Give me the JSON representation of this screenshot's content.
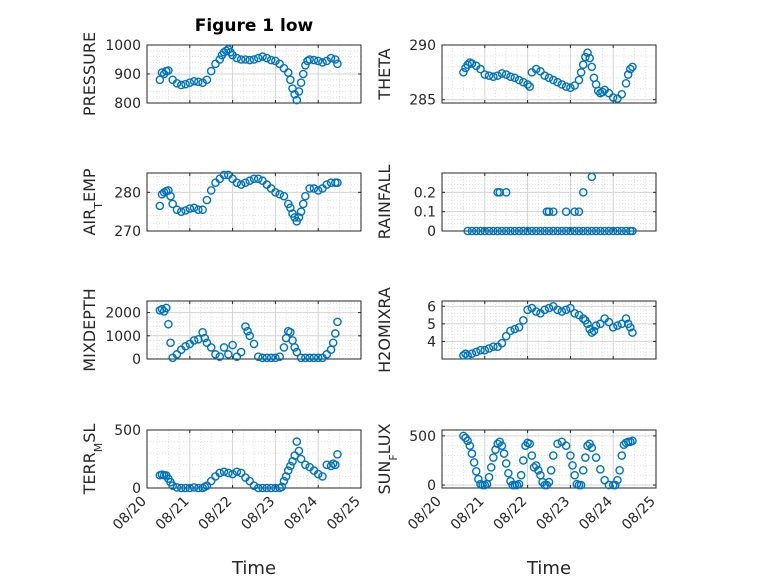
{
  "title": "Figure 1 low",
  "colors": {
    "marker": "#0072bd",
    "axis": "#262626",
    "grid": "#dcdcdc"
  },
  "x_ticks": [
    "08/20",
    "08/21",
    "08/22",
    "08/23",
    "08/24",
    "08/25"
  ],
  "x_label": "Time",
  "chart_data": [
    {
      "type": "scatter",
      "ylabel": "PRESSURE",
      "ylim": [
        800,
        1000
      ],
      "yticks": [
        800,
        900,
        1000
      ],
      "yticklabels": [
        "800",
        "900",
        "1000"
      ],
      "x": [
        20.3,
        20.35,
        20.4,
        20.45,
        20.5,
        20.6,
        20.7,
        20.8,
        20.9,
        21.0,
        21.1,
        21.2,
        21.3,
        21.4,
        21.5,
        21.6,
        21.7,
        21.75,
        21.8,
        21.85,
        21.9,
        21.95,
        22.0,
        22.1,
        22.2,
        22.3,
        22.4,
        22.5,
        22.6,
        22.7,
        22.8,
        22.9,
        23.0,
        23.1,
        23.2,
        23.3,
        23.35,
        23.4,
        23.45,
        23.5,
        23.55,
        23.6,
        23.65,
        23.7,
        23.75,
        23.8,
        23.9,
        24.0,
        24.1,
        24.2,
        24.3,
        24.4,
        24.45
      ],
      "y": [
        880,
        905,
        900,
        910,
        912,
        880,
        868,
        862,
        865,
        870,
        875,
        873,
        870,
        880,
        910,
        935,
        950,
        965,
        975,
        980,
        985,
        975,
        965,
        955,
        950,
        950,
        948,
        950,
        955,
        960,
        955,
        948,
        945,
        935,
        920,
        905,
        880,
        850,
        830,
        810,
        840,
        870,
        900,
        930,
        945,
        950,
        948,
        945,
        940,
        945,
        955,
        950,
        935
      ]
    },
    {
      "type": "scatter",
      "ylabel": "THETA",
      "ylim": [
        284.7,
        290
      ],
      "yticks": [
        285,
        290
      ],
      "yticklabels": [
        "285",
        "290"
      ],
      "x": [
        20.5,
        20.55,
        20.6,
        20.65,
        20.7,
        20.8,
        20.9,
        21.0,
        21.1,
        21.2,
        21.3,
        21.4,
        21.5,
        21.6,
        21.7,
        21.8,
        21.9,
        22.0,
        22.05,
        22.1,
        22.2,
        22.3,
        22.4,
        22.5,
        22.6,
        22.7,
        22.8,
        22.9,
        23.0,
        23.1,
        23.2,
        23.25,
        23.3,
        23.35,
        23.4,
        23.45,
        23.5,
        23.55,
        23.6,
        23.65,
        23.7,
        23.75,
        23.8,
        23.9,
        24.0,
        24.1,
        24.2,
        24.3,
        24.35,
        24.4,
        24.45
      ],
      "y": [
        287.5,
        287.9,
        288.2,
        288.4,
        288.3,
        288.1,
        287.8,
        287.3,
        287.2,
        287.1,
        287.2,
        287.4,
        287.3,
        287.1,
        287.0,
        286.8,
        286.6,
        286.4,
        286.2,
        287.5,
        287.8,
        287.6,
        287.2,
        287.0,
        286.8,
        286.6,
        286.4,
        286.2,
        286.1,
        286.3,
        286.8,
        287.5,
        288.2,
        288.9,
        289.3,
        288.8,
        288.0,
        287.0,
        286.4,
        285.8,
        285.6,
        285.7,
        285.9,
        285.6,
        285.2,
        285.1,
        285.5,
        286.5,
        287.3,
        287.8,
        288.0
      ]
    },
    {
      "type": "scatter",
      "ylabel": "AIR_TEMP",
      "ylim": [
        270,
        285
      ],
      "yticks": [
        270,
        280
      ],
      "yticklabels": [
        "270",
        "280"
      ],
      "x": [
        20.3,
        20.35,
        20.4,
        20.45,
        20.5,
        20.55,
        20.6,
        20.7,
        20.8,
        20.9,
        21.0,
        21.1,
        21.2,
        21.3,
        21.4,
        21.5,
        21.6,
        21.7,
        21.8,
        21.9,
        22.0,
        22.1,
        22.2,
        22.3,
        22.4,
        22.5,
        22.6,
        22.7,
        22.8,
        22.9,
        23.0,
        23.1,
        23.2,
        23.3,
        23.35,
        23.4,
        23.45,
        23.5,
        23.55,
        23.6,
        23.65,
        23.7,
        23.8,
        23.9,
        24.0,
        24.1,
        24.2,
        24.3,
        24.4,
        24.45
      ],
      "y": [
        276.5,
        279.5,
        280.0,
        280.3,
        280.5,
        279.0,
        277.0,
        275.5,
        275.0,
        275.3,
        275.8,
        276.0,
        275.5,
        275.5,
        278.0,
        280.5,
        282.5,
        283.5,
        284.5,
        284.5,
        283.5,
        282.5,
        282.0,
        282.5,
        283.0,
        283.5,
        283.5,
        283.0,
        282.0,
        281.0,
        280.0,
        279.5,
        279.0,
        277.0,
        276.0,
        274.5,
        273.5,
        272.5,
        273.5,
        275.0,
        277.0,
        279.0,
        281.0,
        281.0,
        280.5,
        281.0,
        282.0,
        282.5,
        282.5,
        282.5
      ]
    },
    {
      "type": "scatter",
      "ylabel": "RAINFALL",
      "ylim": [
        0,
        0.3
      ],
      "yticks": [
        0,
        0.1,
        0.2
      ],
      "yticklabels": [
        "0",
        "0.1",
        "0.2"
      ],
      "x": [
        20.6,
        20.7,
        20.8,
        20.9,
        21.0,
        21.1,
        21.2,
        21.3,
        21.4,
        21.5,
        21.6,
        21.7,
        21.8,
        21.9,
        22.0,
        22.1,
        22.2,
        22.3,
        22.4,
        22.5,
        22.6,
        22.7,
        22.8,
        22.9,
        23.0,
        23.1,
        23.2,
        23.3,
        23.4,
        23.5,
        23.6,
        23.7,
        23.8,
        23.9,
        24.0,
        24.1,
        24.2,
        24.3,
        24.4,
        24.45,
        21.3,
        21.35,
        21.5,
        22.45,
        22.5,
        22.6,
        22.9,
        23.1,
        23.2,
        23.3,
        23.5
      ],
      "y": [
        0,
        0,
        0,
        0,
        0,
        0,
        0,
        0,
        0,
        0,
        0,
        0,
        0,
        0,
        0,
        0,
        0,
        0,
        0,
        0,
        0,
        0,
        0,
        0,
        0,
        0,
        0,
        0,
        0,
        0,
        0,
        0,
        0,
        0,
        0,
        0,
        0,
        0,
        0,
        0,
        0.2,
        0.2,
        0.2,
        0.1,
        0.1,
        0.1,
        0.1,
        0.1,
        0.1,
        0.2,
        0.28
      ]
    },
    {
      "type": "scatter",
      "ylabel": "MIXDEPTH",
      "ylim": [
        0,
        2500
      ],
      "yticks": [
        0,
        1000,
        2000
      ],
      "yticklabels": [
        "0",
        "1000",
        "2000"
      ],
      "x": [
        20.3,
        20.35,
        20.4,
        20.45,
        20.5,
        20.55,
        20.6,
        20.7,
        20.8,
        20.9,
        21.0,
        21.1,
        21.2,
        21.3,
        21.35,
        21.4,
        21.5,
        21.6,
        21.7,
        21.8,
        21.9,
        22.0,
        22.1,
        22.2,
        22.3,
        22.35,
        22.4,
        22.5,
        22.6,
        22.7,
        22.8,
        22.9,
        23.0,
        23.1,
        23.2,
        23.25,
        23.3,
        23.35,
        23.4,
        23.45,
        23.5,
        23.6,
        23.7,
        23.8,
        23.9,
        24.0,
        24.1,
        24.2,
        24.3,
        24.35,
        24.4,
        24.45
      ],
      "y": [
        2100,
        2150,
        2050,
        2200,
        1500,
        700,
        50,
        200,
        400,
        550,
        650,
        800,
        850,
        1150,
        900,
        700,
        500,
        200,
        100,
        500,
        200,
        600,
        100,
        300,
        1400,
        1200,
        1000,
        650,
        100,
        50,
        50,
        50,
        50,
        100,
        500,
        900,
        1200,
        1150,
        800,
        500,
        300,
        50,
        50,
        50,
        50,
        50,
        50,
        200,
        400,
        700,
        1100,
        1600
      ]
    },
    {
      "type": "scatter",
      "ylabel": "H2OMIXRA",
      "ylim": [
        3,
        6.3
      ],
      "yticks": [
        4,
        5,
        6
      ],
      "yticklabels": [
        "4",
        "5",
        "6"
      ],
      "x": [
        20.5,
        20.55,
        20.6,
        20.7,
        20.8,
        20.9,
        21.0,
        21.1,
        21.2,
        21.3,
        21.4,
        21.5,
        21.6,
        21.7,
        21.8,
        21.9,
        22.0,
        22.1,
        22.2,
        22.3,
        22.4,
        22.5,
        22.6,
        22.7,
        22.8,
        22.9,
        23.0,
        23.1,
        23.2,
        23.3,
        23.35,
        23.4,
        23.45,
        23.5,
        23.55,
        23.6,
        23.7,
        23.8,
        23.9,
        24.0,
        24.1,
        24.2,
        24.3,
        24.35,
        24.4,
        24.45
      ],
      "y": [
        3.2,
        3.3,
        3.2,
        3.3,
        3.4,
        3.5,
        3.5,
        3.6,
        3.7,
        3.7,
        3.9,
        4.3,
        4.6,
        4.7,
        4.8,
        5.2,
        5.8,
        5.9,
        5.7,
        5.6,
        5.8,
        5.9,
        6.0,
        5.8,
        5.7,
        5.8,
        5.9,
        5.6,
        5.5,
        5.3,
        5.2,
        5.0,
        4.7,
        4.5,
        4.6,
        4.9,
        5.0,
        5.3,
        5.1,
        4.8,
        4.9,
        5.0,
        5.3,
        5.0,
        4.8,
        4.5
      ]
    },
    {
      "type": "scatter",
      "ylabel": "TERR_MSL",
      "ylim": [
        0,
        500
      ],
      "yticks": [
        0,
        500
      ],
      "yticklabels": [
        "0",
        "500"
      ],
      "x": [
        20.3,
        20.35,
        20.4,
        20.45,
        20.5,
        20.55,
        20.6,
        20.7,
        20.8,
        20.9,
        21.0,
        21.1,
        21.2,
        21.3,
        21.35,
        21.4,
        21.5,
        21.6,
        21.7,
        21.8,
        21.9,
        22.0,
        22.1,
        22.2,
        22.3,
        22.4,
        22.5,
        22.6,
        22.7,
        22.8,
        22.9,
        23.0,
        23.1,
        23.15,
        23.2,
        23.25,
        23.3,
        23.35,
        23.4,
        23.45,
        23.5,
        23.55,
        23.6,
        23.7,
        23.8,
        23.9,
        24.0,
        24.1,
        24.2,
        24.3,
        24.35,
        24.4,
        24.45
      ],
      "y": [
        110,
        115,
        110,
        108,
        80,
        50,
        20,
        5,
        0,
        0,
        0,
        5,
        0,
        0,
        10,
        20,
        60,
        100,
        130,
        140,
        130,
        120,
        140,
        130,
        90,
        60,
        20,
        0,
        0,
        0,
        0,
        0,
        0,
        10,
        60,
        100,
        150,
        190,
        230,
        280,
        400,
        320,
        250,
        200,
        180,
        150,
        120,
        100,
        200,
        190,
        210,
        200,
        290
      ]
    },
    {
      "type": "scatter",
      "ylabel": "SUN_FLUX",
      "ylim": [
        -30,
        560
      ],
      "yticks": [
        0,
        500
      ],
      "yticklabels": [
        "0",
        "500"
      ],
      "x": [
        20.5,
        20.55,
        20.6,
        20.65,
        20.7,
        20.75,
        20.8,
        20.85,
        20.9,
        20.95,
        21.0,
        21.05,
        21.1,
        21.15,
        21.2,
        21.25,
        21.3,
        21.35,
        21.4,
        21.45,
        21.5,
        21.55,
        21.6,
        21.65,
        21.7,
        21.75,
        21.8,
        21.85,
        21.9,
        21.95,
        22.0,
        22.05,
        22.1,
        22.15,
        22.2,
        22.25,
        22.3,
        22.35,
        22.4,
        22.45,
        22.5,
        22.55,
        22.6,
        22.7,
        22.8,
        22.9,
        23.0,
        23.05,
        23.1,
        23.15,
        23.2,
        23.25,
        23.3,
        23.35,
        23.4,
        23.45,
        23.5,
        23.6,
        23.7,
        23.8,
        23.9,
        24.0,
        24.05,
        24.1,
        24.15,
        24.2,
        24.25,
        24.3,
        24.35,
        24.4,
        24.45
      ],
      "y": [
        500,
        480,
        450,
        400,
        320,
        230,
        140,
        60,
        10,
        0,
        0,
        10,
        80,
        180,
        280,
        360,
        420,
        440,
        400,
        320,
        220,
        120,
        40,
        0,
        0,
        0,
        10,
        100,
        250,
        400,
        430,
        420,
        300,
        180,
        200,
        150,
        100,
        30,
        0,
        0,
        30,
        150,
        300,
        420,
        440,
        400,
        300,
        200,
        100,
        10,
        0,
        0,
        150,
        280,
        400,
        420,
        380,
        280,
        160,
        50,
        0,
        0,
        0,
        50,
        150,
        300,
        410,
        430,
        440,
        440,
        450
      ]
    }
  ]
}
